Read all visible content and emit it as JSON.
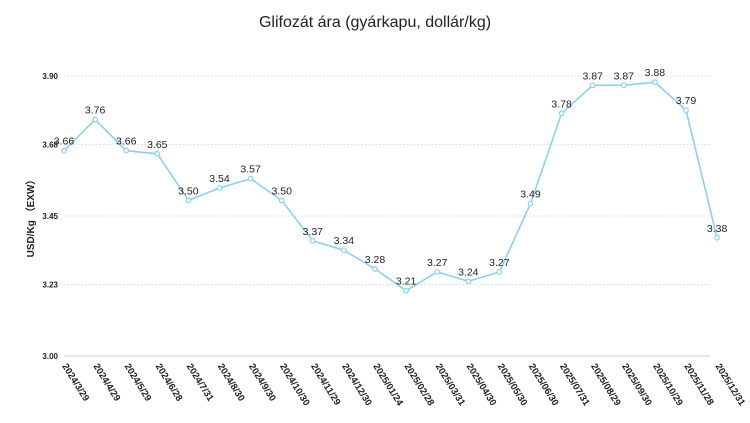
{
  "chart_data": {
    "type": "line",
    "title": "Glifozát ára (gyárkapu, dollár/kg)",
    "ylabel": "USD/Kg （EXW）",
    "xlabel": "",
    "ylim": [
      3.0,
      3.9
    ],
    "yticks": [
      "3.00",
      "3.23",
      "3.45",
      "3.68",
      "3.90"
    ],
    "grid": true,
    "line_color": "#8ecfee",
    "categories": [
      "2024/3/29",
      "2024/4/29",
      "2024/5/29",
      "2024/6/28",
      "2024/7/31",
      "2024/8/30",
      "2024/9/30",
      "2024/10/30",
      "2024/11/29",
      "2024/12/30",
      "2025/01/24",
      "2025/02/28",
      "2025/03/31",
      "2025/04/30",
      "2025/05/30",
      "2025/06/30",
      "2025/07/31",
      "2025/08/29",
      "2025/09/30",
      "2025/10/29",
      "2025/11/28",
      "2025/12/31"
    ],
    "values": [
      3.66,
      3.76,
      3.66,
      3.65,
      3.5,
      3.54,
      3.57,
      3.5,
      3.37,
      3.34,
      3.28,
      3.21,
      3.27,
      3.24,
      3.27,
      3.49,
      3.78,
      3.87,
      3.87,
      3.88,
      3.79,
      3.38
    ],
    "value_labels": [
      "3.66",
      "3.76",
      "3.66",
      "3.65",
      "3.50",
      "3.54",
      "3.57",
      "3.50",
      "3.37",
      "3.34",
      "3.28",
      "3.21",
      "3.27",
      "3.24",
      "3.27",
      "3.49",
      "3.78",
      "3.87",
      "3.87",
      "3.88",
      "3.79",
      "3.38"
    ]
  }
}
